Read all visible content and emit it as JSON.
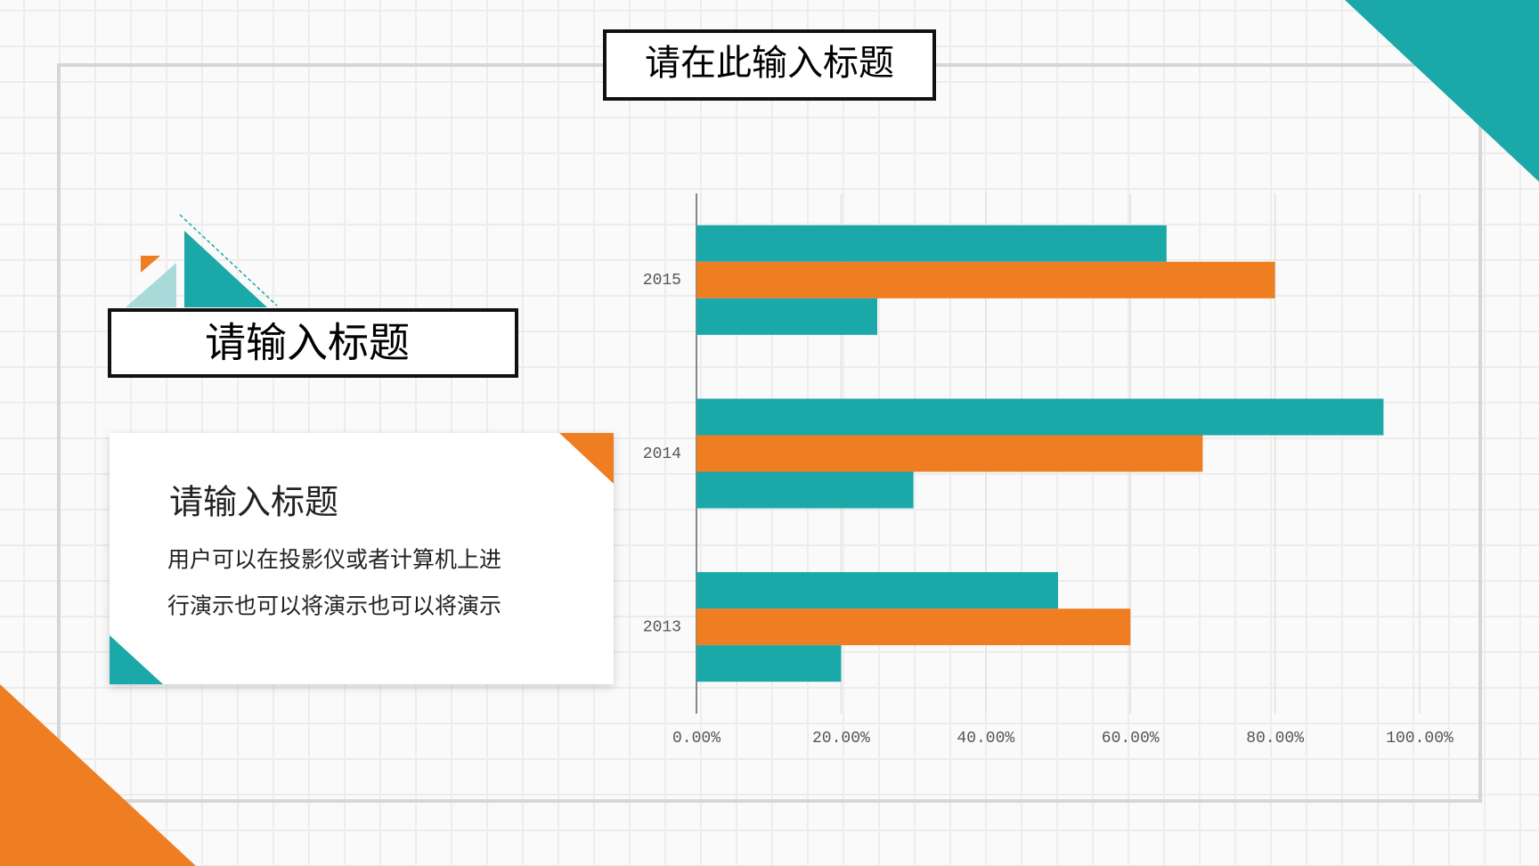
{
  "slide": {
    "title": "请在此输入标题",
    "section_title": "请输入标题",
    "card_title": "请输入标题",
    "card_lines": [
      "用户可以在投影仪或者计算机上进",
      "行演示也可以将演示也可以将演示"
    ]
  },
  "chart_data": {
    "type": "hbar",
    "categories": [
      "2015",
      "2014",
      "2013"
    ],
    "series": [
      {
        "color": "#1ba8a8",
        "values": [
          65,
          95,
          50
        ]
      },
      {
        "color": "#ef7d22",
        "values": [
          80,
          70,
          60
        ]
      },
      {
        "color": "#1ba8a8",
        "values": [
          25,
          30,
          20
        ]
      }
    ],
    "xlim": [
      0,
      100
    ],
    "xticks": [
      {
        "value": 0,
        "label": "0.00%"
      },
      {
        "value": 20,
        "label": "20.00%"
      },
      {
        "value": 40,
        "label": "40.00%"
      },
      {
        "value": 60,
        "label": "60.00%"
      },
      {
        "value": 80,
        "label": "80.00%"
      },
      {
        "value": 100,
        "label": "100.00%"
      }
    ],
    "grid": true
  }
}
